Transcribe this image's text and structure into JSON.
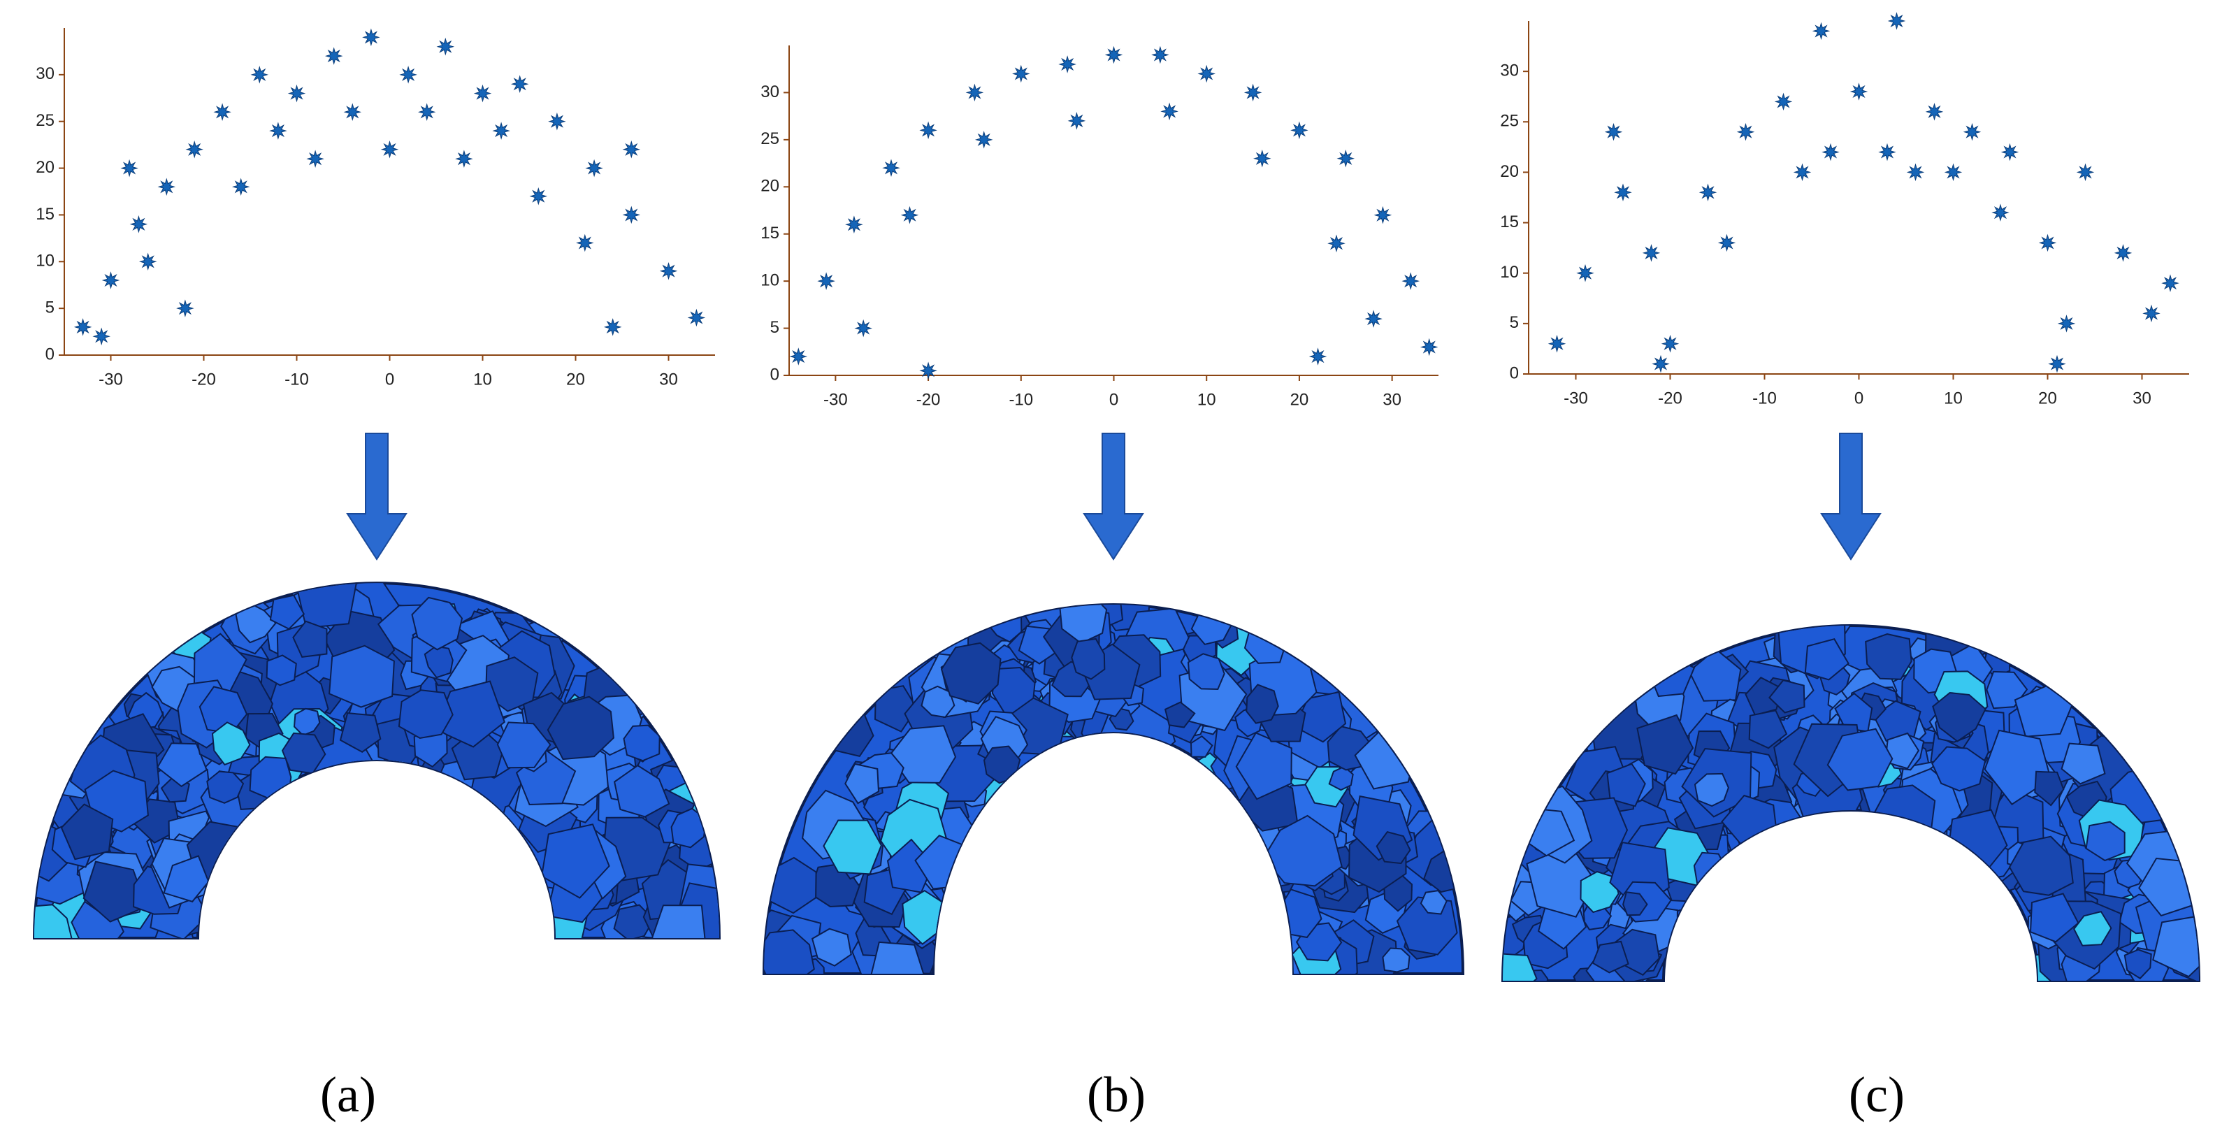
{
  "chart_data": [
    {
      "type": "scatter",
      "caption": "(a)",
      "color": "#1565b8",
      "xlim": [
        -35,
        35
      ],
      "ylim": [
        0,
        35
      ],
      "xticks": [
        -30,
        -20,
        -10,
        0,
        10,
        20,
        30
      ],
      "yticks": [
        0,
        5,
        10,
        15,
        20,
        25,
        30
      ],
      "x": [
        -33,
        -30,
        -27,
        -24,
        -21,
        -31,
        -26,
        -22,
        -28,
        -18,
        -14,
        -10,
        -6,
        -2,
        2,
        6,
        10,
        14,
        18,
        22,
        26,
        30,
        33,
        24,
        26,
        21,
        -16,
        -8,
        0,
        8,
        16,
        -4,
        4,
        12,
        -12
      ],
      "y": [
        3,
        8,
        14,
        18,
        22,
        2,
        10,
        5,
        20,
        26,
        30,
        28,
        32,
        34,
        30,
        33,
        28,
        29,
        25,
        20,
        15,
        9,
        4,
        3,
        22,
        12,
        18,
        21,
        22,
        21,
        17,
        26,
        26,
        24,
        24
      ]
    },
    {
      "type": "scatter",
      "caption": "(b)",
      "color": "#1565b8",
      "xlim": [
        -35,
        35
      ],
      "ylim": [
        0,
        35
      ],
      "xticks": [
        -30,
        -20,
        -10,
        0,
        10,
        20,
        30
      ],
      "yticks": [
        0,
        5,
        10,
        15,
        20,
        25,
        30
      ],
      "x": [
        -34,
        -31,
        -28,
        -24,
        -20,
        -15,
        -10,
        -5,
        0,
        5,
        10,
        15,
        20,
        25,
        29,
        32,
        34,
        -27,
        -22,
        -14,
        -4,
        6,
        16,
        24,
        28,
        -20,
        22
      ],
      "y": [
        2,
        10,
        16,
        22,
        26,
        30,
        32,
        33,
        34,
        34,
        32,
        30,
        26,
        23,
        17,
        10,
        3,
        5,
        17,
        25,
        27,
        28,
        23,
        14,
        6,
        0.5,
        2
      ]
    },
    {
      "type": "scatter",
      "caption": "(c)",
      "color": "#1565b8",
      "xlim": [
        -35,
        35
      ],
      "ylim": [
        0,
        35
      ],
      "xticks": [
        -30,
        -20,
        -10,
        0,
        10,
        20,
        30
      ],
      "yticks": [
        0,
        5,
        10,
        15,
        20,
        25,
        30
      ],
      "x": [
        -32,
        -29,
        -25,
        -22,
        -20,
        -16,
        -12,
        -8,
        -4,
        0,
        4,
        8,
        12,
        16,
        20,
        24,
        28,
        31,
        33,
        -26,
        -14,
        -3,
        3,
        10,
        22,
        -21,
        21,
        -6,
        6,
        15
      ],
      "y": [
        3,
        10,
        18,
        12,
        3,
        18,
        24,
        27,
        34,
        28,
        35,
        26,
        24,
        22,
        13,
        20,
        12,
        6,
        9,
        24,
        13,
        22,
        22,
        20,
        5,
        1,
        1,
        20,
        20,
        16
      ]
    }
  ]
}
